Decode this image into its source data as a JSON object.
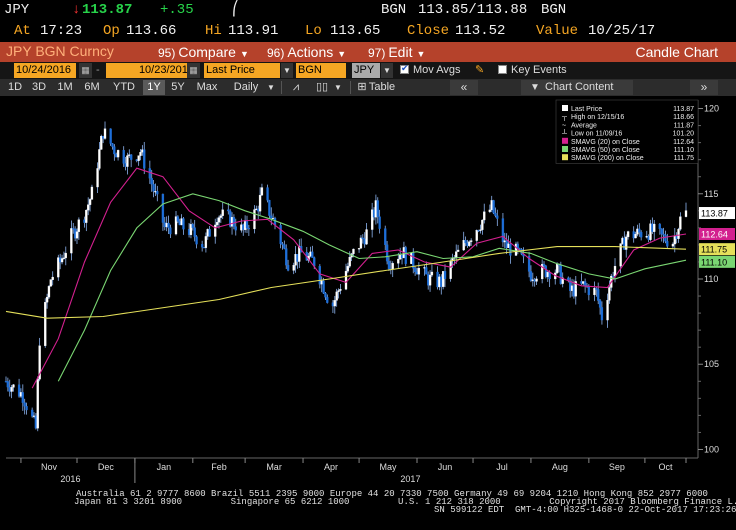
{
  "quote": {
    "ticker": "JPY",
    "arrow": "↓",
    "last": "113.87",
    "change": "+.35",
    "sparkline_glyph": "⎛",
    "source": "BGN",
    "bid_ask": "113.85/113.88",
    "source2": "BGN",
    "time_label": "At",
    "time": "17:23",
    "open_label": "Op",
    "open": "113.66",
    "high_label": "Hi",
    "high": "113.91",
    "low_label": "Lo",
    "low": "113.65",
    "close_label": "Close",
    "close": "113.52",
    "value_label": "Value",
    "value_date": "10/25/17"
  },
  "titlebar": {
    "security": "JPY BGN Curncy",
    "compare_num": "95)",
    "compare": "Compare",
    "actions_num": "96)",
    "actions": "Actions",
    "edit_num": "97)",
    "edit": "Edit",
    "view": "Candle Chart"
  },
  "toolbar": {
    "start_date": "10/24/2016",
    "end_date": "10/23/2017",
    "field": "Last Price",
    "source": "BGN",
    "currency": "JPY",
    "mov_avgs": "Mov Avgs",
    "key_events": "Key Events",
    "periods": [
      "1D",
      "3D",
      "1M",
      "6M",
      "YTD",
      "1Y",
      "5Y",
      "Max"
    ],
    "selected_period": "1Y",
    "frequency": "Daily",
    "table": "Table",
    "chart_content": "Chart Content"
  },
  "legend": [
    {
      "label": "Last Price",
      "value": "113.87",
      "color": "#ffffff",
      "marker": "square"
    },
    {
      "label": "High on 12/15/16",
      "value": "118.66",
      "color": "#ffffff",
      "marker": "up"
    },
    {
      "label": "Average",
      "value": "111.87",
      "color": "#ffffff",
      "marker": "dash"
    },
    {
      "label": "Low on 11/09/16",
      "value": "101.20",
      "color": "#ffffff",
      "marker": "down"
    },
    {
      "label": "SMAVG (20) on Close",
      "value": "112.64",
      "color": "#d3208f",
      "marker": "square"
    },
    {
      "label": "SMAVG (50) on Close",
      "value": "111.10",
      "color": "#7ad672",
      "marker": "square"
    },
    {
      "label": "SMAVG (200) on Close",
      "value": "111.75",
      "color": "#e5e05a",
      "marker": "square"
    }
  ],
  "axis": {
    "y_ticks": [
      "120",
      "115",
      "110",
      "105",
      "100"
    ],
    "months": [
      "Nov",
      "Dec",
      "Jan",
      "Feb",
      "Mar",
      "Apr",
      "May",
      "Jun",
      "Jul",
      "Aug",
      "Sep",
      "Oct"
    ],
    "years": [
      "2016",
      "2017"
    ]
  },
  "price_tags": [
    {
      "label": "113.87",
      "bg": "#ffffff",
      "fg": "#000000"
    },
    {
      "label": "112.64",
      "bg": "#d3208f",
      "fg": "#ffffff"
    },
    {
      "label": "111.75",
      "bg": "#e5e05a",
      "fg": "#000000"
    },
    {
      "label": "111.10",
      "bg": "#7ad672",
      "fg": "#000000"
    }
  ],
  "footer": {
    "line1": "Australia 61 2 9777 8600 Brazil 5511 2395 9000 Europe 44 20 7330 7500 Germany 49 69 9204 1210 Hong Kong 852 2977 6000",
    "line2": "Japan 81 3 3201 8900         Singapore 65 6212 1000         U.S. 1 212 318 2000         Copyright 2017 Bloomberg Finance L.P.",
    "line3": "SN 599122 EDT  GMT-4:00 H325-1468-0 22-Oct-2017 17:23:26"
  },
  "chart_data": {
    "type": "candlestick",
    "title": "",
    "x_range": [
      "2016-10-24",
      "2017-10-23"
    ],
    "ylim": [
      99.5,
      120.5
    ],
    "y_ticks": [
      100,
      105,
      110,
      115,
      120
    ],
    "grid": false,
    "legend_position": "top-right",
    "series": [
      {
        "name": "Last Price",
        "points": [
          [
            "2016-10-24",
            104.0
          ],
          [
            "2016-11-02",
            103.2
          ],
          [
            "2016-11-09",
            101.2
          ],
          [
            "2016-11-11",
            106.5
          ],
          [
            "2016-11-17",
            110.0
          ],
          [
            "2016-11-22",
            111.0
          ],
          [
            "2016-11-28",
            112.5
          ],
          [
            "2016-12-05",
            113.8
          ],
          [
            "2016-12-09",
            115.0
          ],
          [
            "2016-12-15",
            118.66
          ],
          [
            "2016-12-21",
            117.6
          ],
          [
            "2016-12-28",
            117.0
          ],
          [
            "2017-01-04",
            117.5
          ],
          [
            "2017-01-10",
            115.6
          ],
          [
            "2017-01-17",
            113.0
          ],
          [
            "2017-01-24",
            113.2
          ],
          [
            "2017-01-31",
            112.8
          ],
          [
            "2017-02-07",
            112.0
          ],
          [
            "2017-02-14",
            113.8
          ],
          [
            "2017-02-21",
            113.5
          ],
          [
            "2017-02-28",
            112.8
          ],
          [
            "2017-03-07",
            114.0
          ],
          [
            "2017-03-10",
            115.0
          ],
          [
            "2017-03-17",
            113.2
          ],
          [
            "2017-03-24",
            111.0
          ],
          [
            "2017-03-31",
            111.5
          ],
          [
            "2017-04-07",
            111.0
          ],
          [
            "2017-04-14",
            109.0
          ],
          [
            "2017-04-17",
            108.5
          ],
          [
            "2017-04-24",
            110.5
          ],
          [
            "2017-04-28",
            111.5
          ],
          [
            "2017-05-05",
            112.7
          ],
          [
            "2017-05-10",
            114.2
          ],
          [
            "2017-05-17",
            111.0
          ],
          [
            "2017-05-24",
            111.6
          ],
          [
            "2017-05-31",
            110.8
          ],
          [
            "2017-06-07",
            110.0
          ],
          [
            "2017-06-14",
            109.8
          ],
          [
            "2017-06-21",
            111.2
          ],
          [
            "2017-06-28",
            112.3
          ],
          [
            "2017-07-05",
            113.3
          ],
          [
            "2017-07-11",
            114.2
          ],
          [
            "2017-07-18",
            112.0
          ],
          [
            "2017-07-25",
            111.5
          ],
          [
            "2017-08-01",
            110.3
          ],
          [
            "2017-08-08",
            110.5
          ],
          [
            "2017-08-15",
            110.5
          ],
          [
            "2017-08-22",
            109.3
          ],
          [
            "2017-08-29",
            109.6
          ],
          [
            "2017-09-05",
            109.2
          ],
          [
            "2017-09-08",
            107.8
          ],
          [
            "2017-09-14",
            110.5
          ],
          [
            "2017-09-21",
            112.5
          ],
          [
            "2017-09-28",
            112.7
          ],
          [
            "2017-10-05",
            112.8
          ],
          [
            "2017-10-11",
            112.4
          ],
          [
            "2017-10-16",
            112.2
          ],
          [
            "2017-10-20",
            113.5
          ],
          [
            "2017-10-23",
            113.87
          ]
        ]
      },
      {
        "name": "SMAVG (20) on Close",
        "points": [
          [
            "2016-11-07",
            103.6
          ],
          [
            "2016-11-21",
            106.5
          ],
          [
            "2016-12-05",
            111.0
          ],
          [
            "2016-12-19",
            114.5
          ],
          [
            "2017-01-02",
            116.5
          ],
          [
            "2017-01-16",
            116.0
          ],
          [
            "2017-01-30",
            114.0
          ],
          [
            "2017-02-13",
            113.0
          ],
          [
            "2017-02-27",
            113.4
          ],
          [
            "2017-03-13",
            113.5
          ],
          [
            "2017-03-27",
            112.3
          ],
          [
            "2017-04-10",
            110.3
          ],
          [
            "2017-04-24",
            109.8
          ],
          [
            "2017-05-08",
            111.5
          ],
          [
            "2017-05-22",
            111.7
          ],
          [
            "2017-06-05",
            111.0
          ],
          [
            "2017-06-19",
            110.7
          ],
          [
            "2017-07-03",
            112.1
          ],
          [
            "2017-07-17",
            112.5
          ],
          [
            "2017-07-31",
            111.2
          ],
          [
            "2017-08-14",
            110.2
          ],
          [
            "2017-08-28",
            109.6
          ],
          [
            "2017-09-11",
            109.5
          ],
          [
            "2017-09-25",
            111.7
          ],
          [
            "2017-10-09",
            112.4
          ],
          [
            "2017-10-23",
            112.64
          ]
        ]
      },
      {
        "name": "SMAVG (50) on Close",
        "points": [
          [
            "2016-11-21",
            104.0
          ],
          [
            "2016-12-05",
            107.0
          ],
          [
            "2016-12-19",
            110.5
          ],
          [
            "2017-01-02",
            113.0
          ],
          [
            "2017-01-16",
            114.4
          ],
          [
            "2017-02-01",
            115.0
          ],
          [
            "2017-02-15",
            114.6
          ],
          [
            "2017-03-01",
            114.0
          ],
          [
            "2017-03-15",
            113.5
          ],
          [
            "2017-04-01",
            112.8
          ],
          [
            "2017-04-15",
            112.0
          ],
          [
            "2017-05-01",
            111.2
          ],
          [
            "2017-05-15",
            111.3
          ],
          [
            "2017-06-01",
            111.6
          ],
          [
            "2017-06-15",
            111.2
          ],
          [
            "2017-07-01",
            111.3
          ],
          [
            "2017-07-15",
            111.8
          ],
          [
            "2017-08-01",
            111.5
          ],
          [
            "2017-08-15",
            110.9
          ],
          [
            "2017-09-01",
            110.3
          ],
          [
            "2017-09-15",
            110.0
          ],
          [
            "2017-10-01",
            110.6
          ],
          [
            "2017-10-23",
            111.1
          ]
        ]
      },
      {
        "name": "SMAVG (200) on Close",
        "points": [
          [
            "2016-10-24",
            108.1
          ],
          [
            "2016-11-15",
            107.7
          ],
          [
            "2016-12-15",
            107.8
          ],
          [
            "2017-01-15",
            108.3
          ],
          [
            "2017-02-15",
            108.8
          ],
          [
            "2017-03-15",
            109.5
          ],
          [
            "2017-04-15",
            110.0
          ],
          [
            "2017-05-15",
            110.5
          ],
          [
            "2017-06-15",
            111.0
          ],
          [
            "2017-07-15",
            111.5
          ],
          [
            "2017-08-15",
            111.9
          ],
          [
            "2017-09-15",
            111.9
          ],
          [
            "2017-10-23",
            111.75
          ]
        ]
      }
    ]
  }
}
